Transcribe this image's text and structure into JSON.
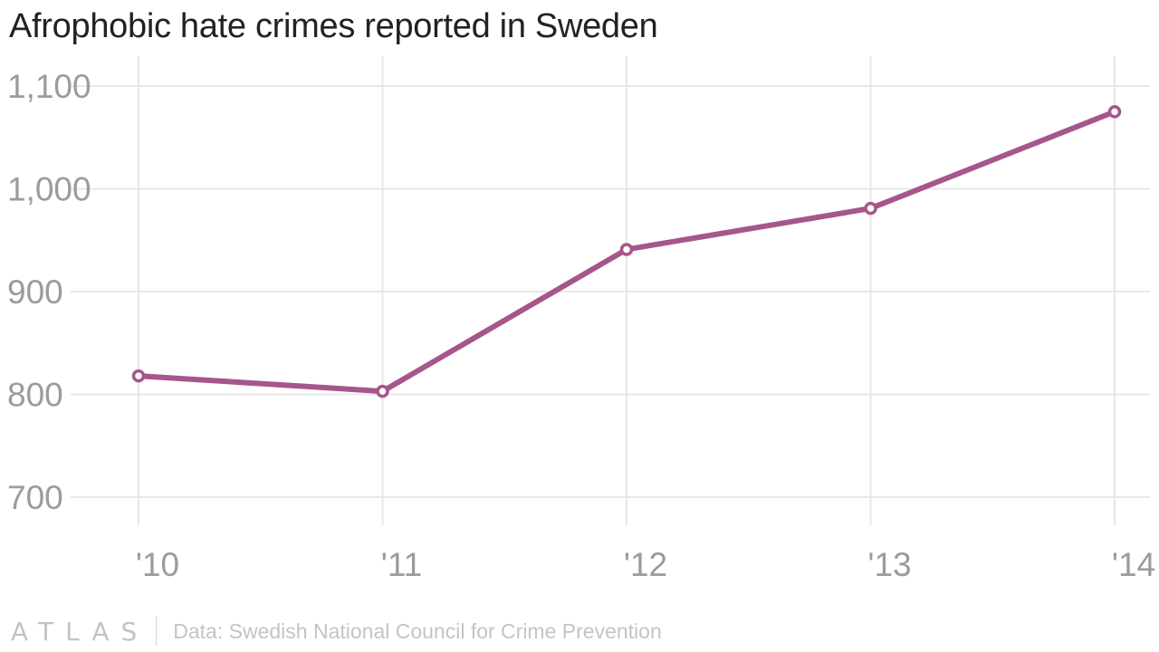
{
  "title": "Afrophobic hate crimes reported in Sweden",
  "footer": {
    "brand": "ATLAS",
    "source": "Data: Swedish National Council for Crime Prevention"
  },
  "colors": {
    "line": "#a6568b",
    "grid": "#e8e8e8",
    "tick_text": "#9b9b9b",
    "marker_fill": "#ffffff"
  },
  "chart_data": {
    "type": "line",
    "title": "Afrophobic hate crimes reported in Sweden",
    "x": [
      "'10",
      "'11",
      "'12",
      "'13",
      "'14"
    ],
    "series": [
      {
        "values": [
          818,
          803,
          941,
          981,
          1075
        ]
      }
    ],
    "ylim": [
      700,
      1100
    ],
    "yticks": [
      700,
      800,
      900,
      1000,
      1100
    ],
    "ytick_labels": [
      "700",
      "800",
      "900",
      "1,000",
      "1,100"
    ],
    "xlabel": "",
    "ylabel": "",
    "grid": true,
    "markers": true
  }
}
